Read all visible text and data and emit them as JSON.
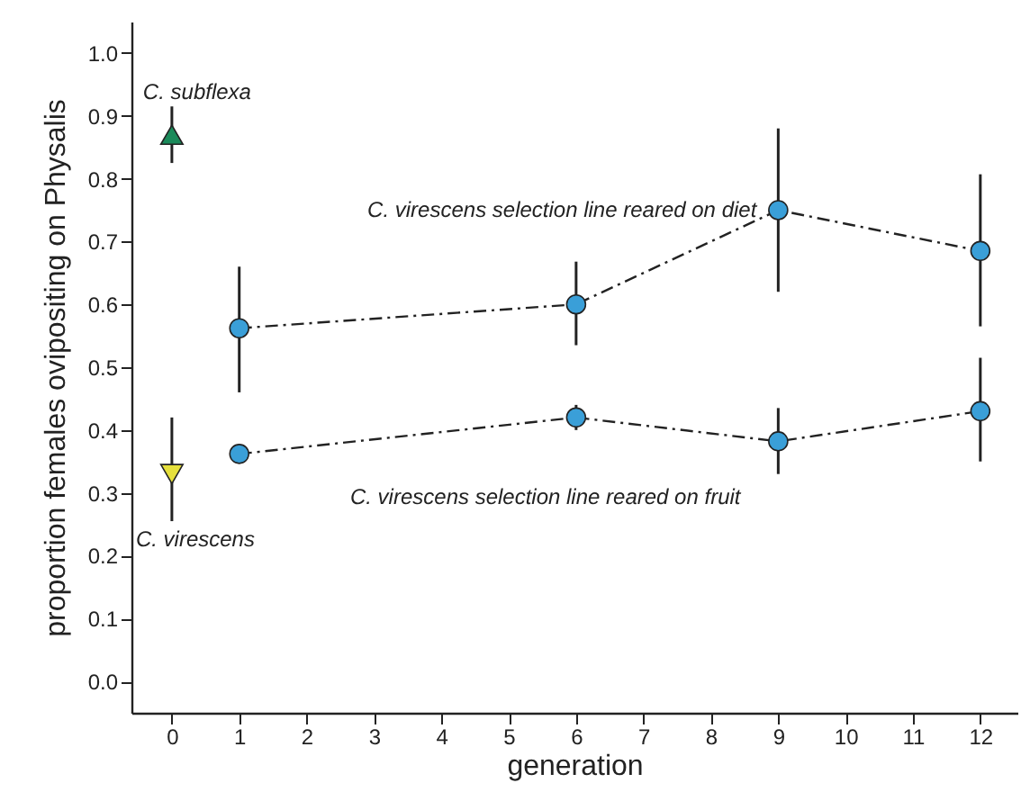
{
  "chart_data": {
    "type": "line",
    "xlabel": "generation",
    "ylabel": "proportion females ovipositing on Physalis",
    "xlim": [
      -0.6,
      12.55
    ],
    "xticks": [
      0,
      1,
      2,
      3,
      4,
      5,
      6,
      7,
      8,
      9,
      10,
      11,
      12
    ],
    "ylim": [
      -0.05,
      1.05
    ],
    "yticks": [
      {
        "value": 0,
        "label": "0.0"
      },
      {
        "value": 0.1,
        "label": "0.1"
      },
      {
        "value": 0.2,
        "label": "0.2"
      },
      {
        "value": 0.3,
        "label": "0.3"
      },
      {
        "value": 0.4,
        "label": "0.4"
      },
      {
        "value": 0.5,
        "label": "0.5"
      },
      {
        "value": 0.6,
        "label": "0.6"
      },
      {
        "value": 0.7,
        "label": "0.7"
      },
      {
        "value": 0.8,
        "label": "0.8"
      },
      {
        "value": 0.9,
        "label": "0.9"
      },
      {
        "value": 1,
        "label": "1.0"
      }
    ],
    "grid": false,
    "series": [
      {
        "name": "C. subflexa",
        "type": "scatter",
        "marker": "triangle",
        "color": "#1a8a5a",
        "x": [
          0
        ],
        "values": [
          0.87
        ],
        "errors": [
          [
            0.825,
            0.915
          ]
        ]
      },
      {
        "name": "C. virescens",
        "type": "scatter",
        "marker": "triangle-down",
        "color": "#e6e03c",
        "x": [
          0
        ],
        "values": [
          0.33
        ],
        "errors": [
          [
            0.255,
            0.42
          ]
        ]
      },
      {
        "name": "C. virescens selection line reared on diet",
        "marker": "circle",
        "line_style": "dashed",
        "color": "#3a9fd8",
        "x": [
          1,
          6,
          9,
          12
        ],
        "values": [
          0.562,
          0.6,
          0.75,
          0.685
        ],
        "errors": [
          [
            0.46,
            0.66
          ],
          [
            0.535,
            0.668
          ],
          [
            0.62,
            0.88
          ],
          [
            0.565,
            0.807
          ]
        ]
      },
      {
        "name": "C. virescens selection line reared on fruit",
        "marker": "circle",
        "line_style": "dashed",
        "color": "#3a9fd8",
        "x": [
          1,
          6,
          9,
          12
        ],
        "values": [
          0.362,
          0.42,
          0.382,
          0.43
        ],
        "errors": [
          [
            0.35,
            0.375
          ],
          [
            0.4,
            0.44
          ],
          [
            0.33,
            0.435
          ],
          [
            0.35,
            0.515
          ]
        ]
      }
    ]
  }
}
